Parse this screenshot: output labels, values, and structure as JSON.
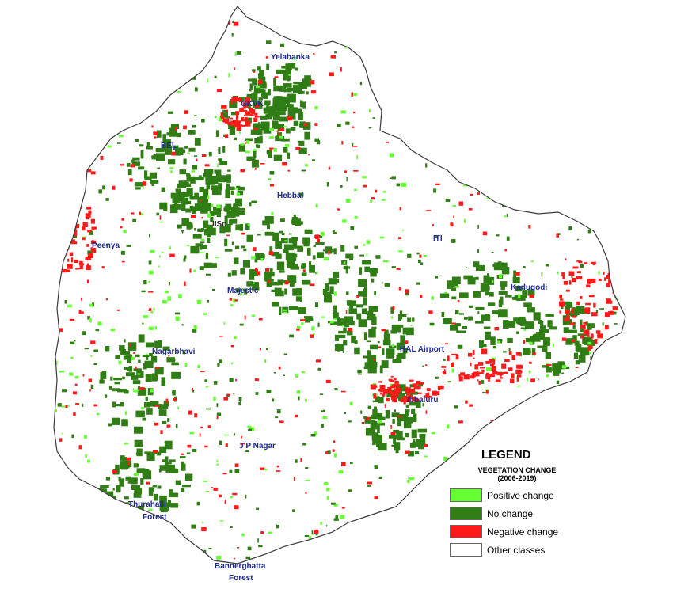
{
  "map": {
    "colors": {
      "positive": "#66ff33",
      "no_change": "#2f7d14",
      "negative": "#ff1a1a",
      "other": "#ffffff",
      "label": "#1f2a8c"
    },
    "places": [
      {
        "id": "yelahanka",
        "label": "Yelahanka"
      },
      {
        "id": "gkvk",
        "label": "GKVK"
      },
      {
        "id": "bel",
        "label": "BEL"
      },
      {
        "id": "hebbal",
        "label": "Hebbal"
      },
      {
        "id": "iisc",
        "label": "IISc"
      },
      {
        "id": "peenya",
        "label": "Peenya"
      },
      {
        "id": "iti",
        "label": "ITI"
      },
      {
        "id": "kadugodi",
        "label": "Kadugodi"
      },
      {
        "id": "majestic",
        "label": "Majestic"
      },
      {
        "id": "hal-airport",
        "label": "HAL Airport"
      },
      {
        "id": "nagarbhavi",
        "label": "Nagarbhavi"
      },
      {
        "id": "ibbaluru",
        "label": "Ibbaluru"
      },
      {
        "id": "jp-nagar",
        "label": "J P Nagar"
      },
      {
        "id": "thurahalli-1",
        "label": "Thurahalli"
      },
      {
        "id": "thurahalli-2",
        "label": "Forest"
      },
      {
        "id": "bannerghatta-1",
        "label": "Bannerghatta"
      },
      {
        "id": "bannerghatta-2",
        "label": "Forest"
      }
    ]
  },
  "legend": {
    "title": "LEGEND",
    "subtitle_line1": "VEGETATION CHANGE",
    "subtitle_line2": "(2006-2019)",
    "items": [
      {
        "label": "Positive change",
        "color": "#66ff33"
      },
      {
        "label": "No change",
        "color": "#2f7d14"
      },
      {
        "label": "Negative change",
        "color": "#ff1a1a"
      },
      {
        "label": "Other classes",
        "color": "#ffffff"
      }
    ]
  }
}
